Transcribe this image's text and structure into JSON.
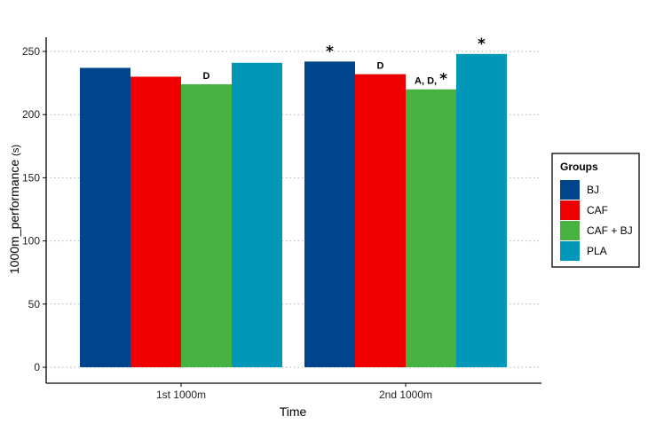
{
  "chart_data": {
    "type": "bar",
    "categories": [
      "1st 1000m",
      "2nd 1000m"
    ],
    "series": [
      {
        "name": "BJ",
        "color": "#00448c",
        "values": [
          237,
          242
        ]
      },
      {
        "name": "CAF",
        "color": "#ee0000",
        "values": [
          230,
          232
        ]
      },
      {
        "name": "CAF + BJ",
        "color": "#47b142",
        "values": [
          224,
          220
        ]
      },
      {
        "name": "PLA",
        "color": "#0097b8",
        "values": [
          241,
          248
        ]
      }
    ],
    "annotations": [
      {
        "category": 0,
        "series": 2,
        "letters": "D",
        "star": ""
      },
      {
        "category": 1,
        "series": 0,
        "letters": "",
        "star": "*"
      },
      {
        "category": 1,
        "series": 1,
        "letters": "D",
        "star": ""
      },
      {
        "category": 1,
        "series": 2,
        "letters": "A, D,",
        "star": "*"
      },
      {
        "category": 1,
        "series": 3,
        "letters": "",
        "star": "*"
      }
    ],
    "xlabel": "Time",
    "ylabel_main": "1000m_performance",
    "ylabel_unit": "(s)",
    "ylim": [
      0,
      262
    ],
    "yticks": [
      0,
      50,
      100,
      150,
      200,
      250
    ],
    "grid": "horizontal dotted",
    "legend": {
      "title": "Groups",
      "placement": "right"
    }
  }
}
